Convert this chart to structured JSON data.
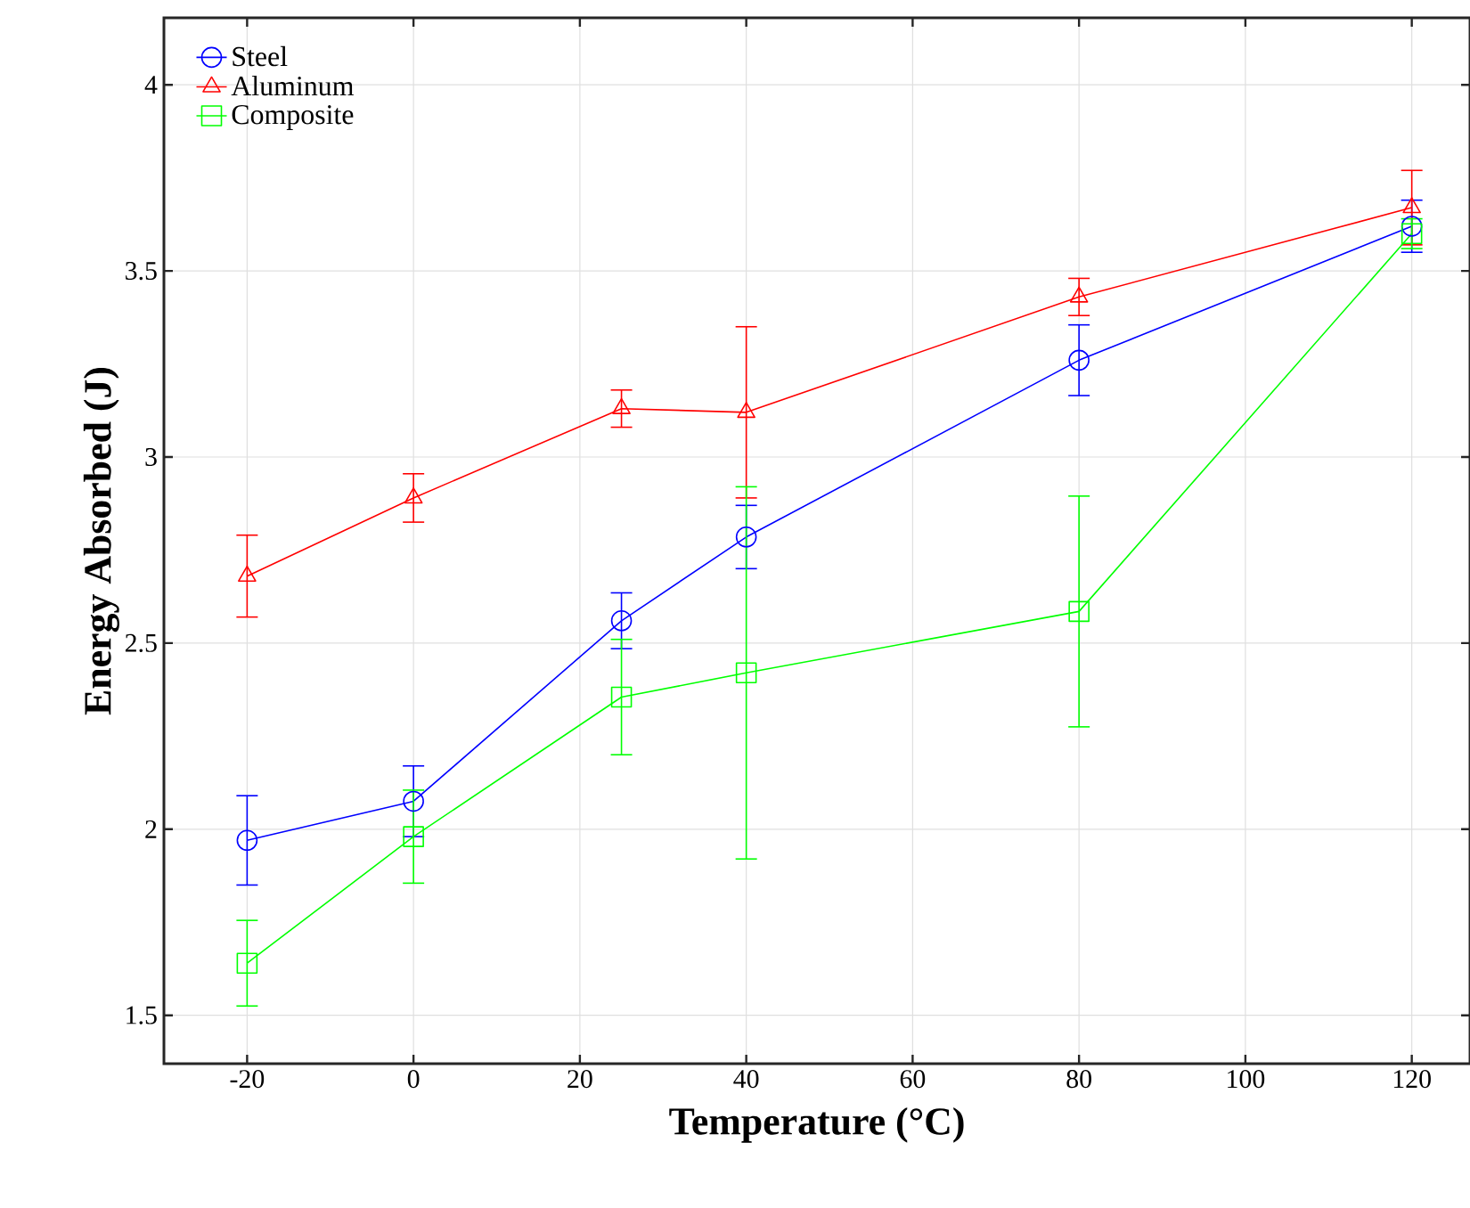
{
  "chart_data": {
    "type": "line",
    "xlabel": "Temperature (°C)",
    "ylabel": "Energy Absorbed (J)",
    "x": [
      -20,
      0,
      25,
      40,
      80,
      120
    ],
    "xlim": [
      -30,
      127
    ],
    "ylim": [
      1.37,
      4.18
    ],
    "xticks": [
      -20,
      0,
      20,
      40,
      60,
      80,
      100,
      120
    ],
    "yticks": [
      1.5,
      2,
      2.5,
      3,
      3.5,
      4
    ],
    "grid": true,
    "legend": "top left",
    "line_style": "solid",
    "series": [
      {
        "name": "Steel",
        "color": "#0000ff",
        "marker": "circle",
        "values": [
          1.97,
          2.075,
          2.56,
          2.785,
          3.26,
          3.62
        ],
        "errors": [
          0.12,
          0.095,
          0.075,
          0.085,
          0.095,
          0.07
        ]
      },
      {
        "name": "Aluminum",
        "color": "#ff0000",
        "marker": "triangle",
        "values": [
          2.68,
          2.89,
          3.13,
          3.12,
          3.43,
          3.67
        ],
        "errors": [
          0.11,
          0.065,
          0.05,
          [
            2.89,
            3.35
          ],
          0.05,
          0.1
        ]
      },
      {
        "name": "Composite",
        "color": "#00ff00",
        "marker": "square",
        "values": [
          1.64,
          1.98,
          2.355,
          2.42,
          2.585,
          3.6
        ],
        "errors": [
          0.115,
          0.125,
          0.155,
          0.5,
          0.31,
          0.04
        ]
      }
    ]
  }
}
